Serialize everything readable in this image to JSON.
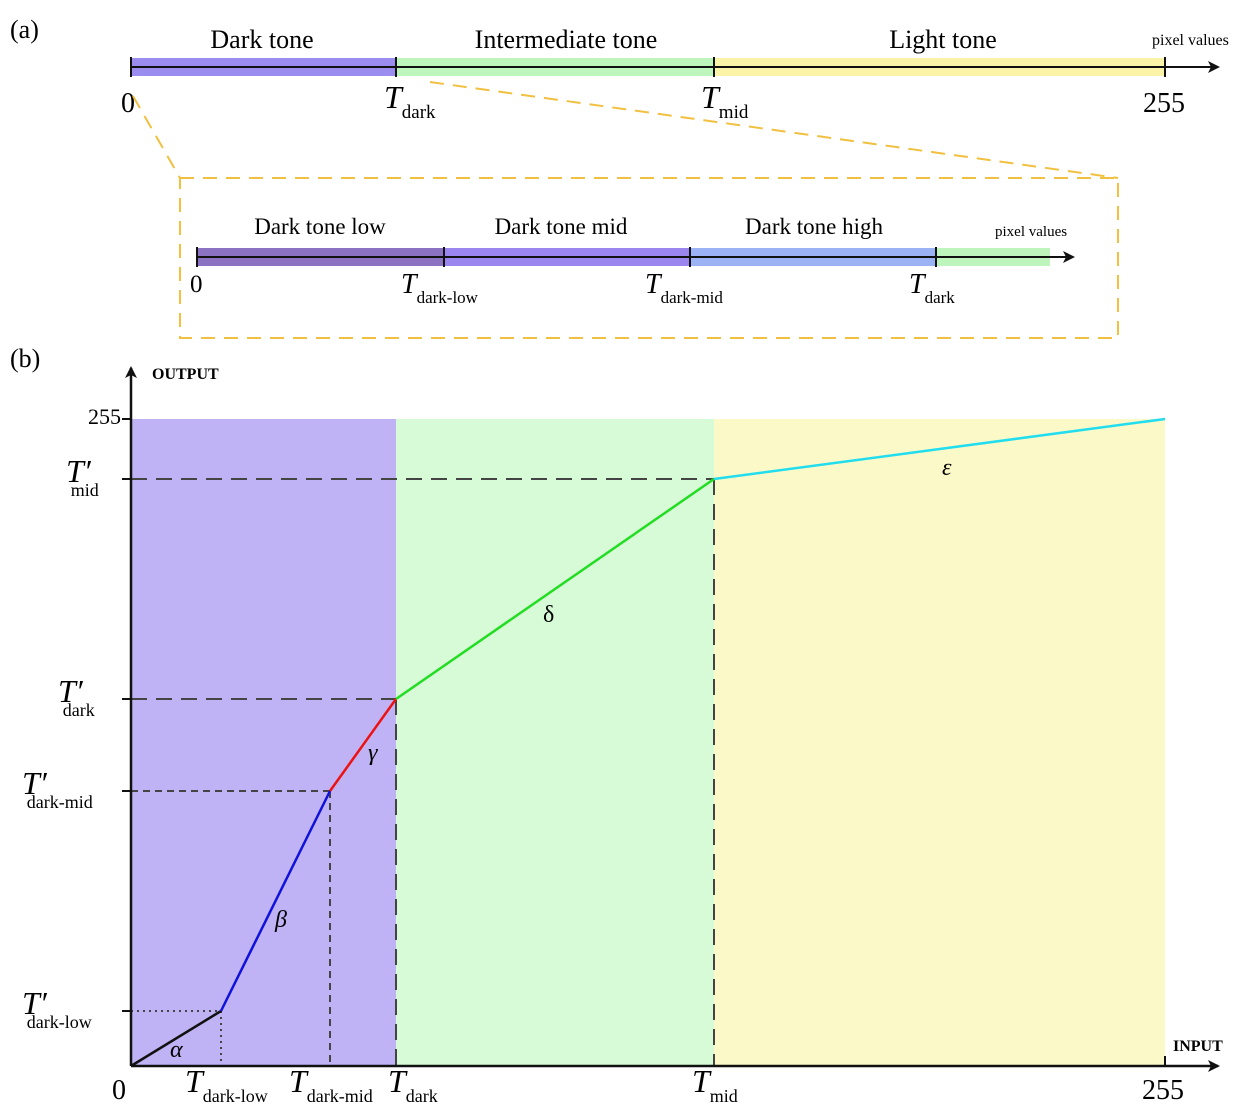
{
  "panel_a": {
    "label": "(a)",
    "axis": {
      "unit_label": "pixel values",
      "start_label": "0",
      "end_label": "255",
      "thresholds": [
        {
          "main": "T",
          "sub": "dark"
        },
        {
          "main": "T",
          "sub": "mid"
        }
      ],
      "segments": [
        {
          "label": "Dark tone",
          "color": "#9b8cf0"
        },
        {
          "label": "Intermediate tone",
          "color": "#bdf5bd"
        },
        {
          "label": "Light tone",
          "color": "#fbf3a8"
        }
      ]
    },
    "inset": {
      "unit_label": "pixel values",
      "start_label": "0",
      "thresholds": [
        {
          "main": "T",
          "sub": "dark-low"
        },
        {
          "main": "T",
          "sub": "dark-mid"
        },
        {
          "main": "T",
          "sub": "dark"
        }
      ],
      "segments": [
        {
          "label": "Dark tone low",
          "color": "#8b72c2"
        },
        {
          "label": "Dark tone mid",
          "color": "#9b86f0"
        },
        {
          "label": "Dark tone high",
          "color": "#9bb2f5"
        },
        {
          "label": "",
          "color": "#bdf5bd"
        }
      ],
      "border_color": "#f2c040"
    }
  },
  "panel_b": {
    "label": "(b)",
    "y_axis_title": "OUTPUT",
    "x_axis_title": "INPUT",
    "origin_label": "0",
    "y_top_label": "255",
    "x_end_label": "255",
    "x_ticks": [
      {
        "main": "T",
        "sub": "dark-low"
      },
      {
        "main": "T",
        "sub": "dark-mid"
      },
      {
        "main": "T",
        "sub": "dark"
      },
      {
        "main": "T",
        "sub": "mid"
      }
    ],
    "y_ticks": [
      {
        "main": "T′",
        "sub": "dark-low"
      },
      {
        "main": "T′",
        "sub": "dark-mid"
      },
      {
        "main": "T′",
        "sub": "dark"
      },
      {
        "main": "T′",
        "sub": "mid"
      }
    ],
    "regions": [
      {
        "name": "dark",
        "color": "#bfb3f5"
      },
      {
        "name": "intermediate",
        "color": "#d7fbd7"
      },
      {
        "name": "light",
        "color": "#fcf9c8"
      }
    ],
    "segments": [
      {
        "label": "α",
        "color": "#111111"
      },
      {
        "label": "β",
        "color": "#1111dd"
      },
      {
        "label": "γ",
        "color": "#ee1111"
      },
      {
        "label": "δ",
        "color": "#22dd22"
      },
      {
        "label": "ε",
        "color": "#22ddee"
      }
    ]
  }
}
